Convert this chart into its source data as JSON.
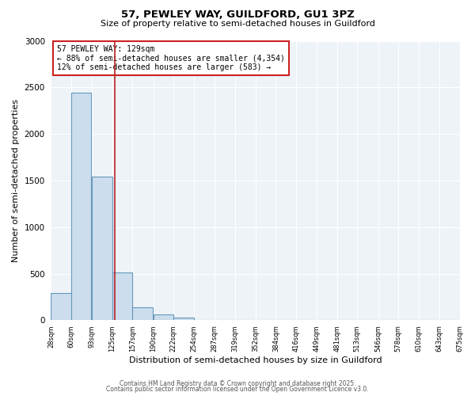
{
  "title1": "57, PEWLEY WAY, GUILDFORD, GU1 3PZ",
  "title2": "Size of property relative to semi-detached houses in Guildford",
  "xlabel": "Distribution of semi-detached houses by size in Guildford",
  "ylabel": "Number of semi-detached properties",
  "bar_values": [
    290,
    2440,
    1540,
    510,
    140,
    60,
    25,
    0,
    0,
    0,
    0,
    0,
    0,
    0,
    0,
    0,
    0,
    0,
    0,
    0
  ],
  "bin_labels": [
    "28sqm",
    "60sqm",
    "93sqm",
    "125sqm",
    "157sqm",
    "190sqm",
    "222sqm",
    "254sqm",
    "287sqm",
    "319sqm",
    "352sqm",
    "384sqm",
    "416sqm",
    "449sqm",
    "481sqm",
    "513sqm",
    "546sqm",
    "578sqm",
    "610sqm",
    "643sqm",
    "675sqm"
  ],
  "bin_edges": [
    28,
    60,
    93,
    125,
    157,
    190,
    222,
    254,
    287,
    319,
    352,
    384,
    416,
    449,
    481,
    513,
    546,
    578,
    610,
    643,
    675
  ],
  "bar_color": "#ccdded",
  "bar_edge_color": "#6699bb",
  "property_value": 129,
  "marker_line_color": "#bb2222",
  "ylim": [
    0,
    3000
  ],
  "yticks": [
    0,
    500,
    1000,
    1500,
    2000,
    2500,
    3000
  ],
  "annotation_title": "57 PEWLEY WAY: 129sqm",
  "annotation_line1": "← 88% of semi-detached houses are smaller (4,354)",
  "annotation_line2": "12% of semi-detached houses are larger (583) →",
  "footer1": "Contains HM Land Registry data © Crown copyright and database right 2025.",
  "footer2": "Contains public sector information licensed under the Open Government Licence v3.0.",
  "bg_color": "#ffffff",
  "plot_bg_color": "#eef3f8"
}
